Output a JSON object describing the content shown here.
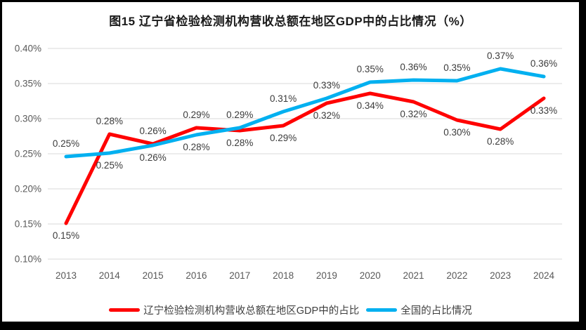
{
  "frame": {
    "border_color": "#000000",
    "background": "#ffffff"
  },
  "chart_data": {
    "type": "line",
    "title": "图15 辽宁省检验检测机构营收总额在地区GDP中的占比情况（%）",
    "categories": [
      "2013",
      "2014",
      "2015",
      "2016",
      "2017",
      "2018",
      "2019",
      "2020",
      "2021",
      "2022",
      "2023",
      "2024"
    ],
    "xlabel": "",
    "ylabel": "",
    "y_axis": {
      "min": 0.1,
      "max": 0.4,
      "step": 0.05,
      "tick_labels": [
        "0.40%",
        "0.35%",
        "0.30%",
        "0.25%",
        "0.20%",
        "0.15%",
        "0.10%"
      ],
      "grid": true,
      "grid_color": "#D9D9D9",
      "tick_color": "#595959"
    },
    "series": [
      {
        "name": "辽宁检验检测机构营收总额在地区GDP中的占比",
        "color": "#FF0000",
        "values": [
          0.151,
          0.278,
          0.264,
          0.287,
          0.283,
          0.29,
          0.322,
          0.336,
          0.324,
          0.298,
          0.285,
          0.329
        ],
        "labels": [
          "0.15%",
          "0.28%",
          "0.26%",
          "0.29%",
          "0.28%",
          "0.29%",
          "0.32%",
          "0.34%",
          "0.32%",
          "0.30%",
          "0.28%",
          "0.33%"
        ],
        "label_side": [
          "below",
          "above",
          "above",
          "above",
          "below",
          "below",
          "below",
          "below",
          "below",
          "below",
          "below",
          "below"
        ]
      },
      {
        "name": "全国的占比情况",
        "color": "#00B0F0",
        "values": [
          0.246,
          0.251,
          0.262,
          0.277,
          0.287,
          0.31,
          0.329,
          0.352,
          0.355,
          0.354,
          0.371,
          0.36
        ],
        "labels": [
          "0.25%",
          "0.25%",
          "0.26%",
          "0.28%",
          "0.29%",
          "0.31%",
          "0.33%",
          "0.35%",
          "0.36%",
          "0.35%",
          "0.37%",
          "0.36%"
        ],
        "label_side": [
          "above",
          "below",
          "below",
          "below",
          "above",
          "above",
          "above",
          "above",
          "above",
          "above",
          "above",
          "above"
        ]
      }
    ],
    "legend_position": "bottom",
    "data_label_color": "#3b3b3b"
  }
}
